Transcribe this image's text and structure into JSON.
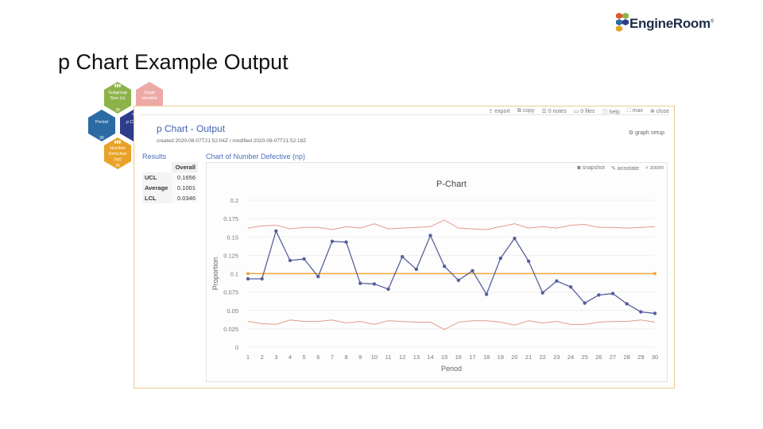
{
  "slide_title": "p Chart Example Output",
  "logo": {
    "text": "EngineRoom",
    "mark": "®"
  },
  "hexes": {
    "subgroup": {
      "line1": "Subgroup",
      "line2": "Size (n)",
      "count": "30"
    },
    "stage": {
      "line1": "Stage",
      "line2": "Variable"
    },
    "period": {
      "label": "Period",
      "count": "30"
    },
    "pchart": {
      "label": "p Chart"
    },
    "defective": {
      "line1": "Number",
      "line2": "Defective",
      "line3": "(np)",
      "count": "30"
    },
    "colors": {
      "green": "#8db24a",
      "pink": "#eda9a6",
      "blue": "#2b6aa3",
      "navy": "#2d3d8c",
      "orange": "#e9a227"
    }
  },
  "toolbar": {
    "export": "export",
    "copy": "copy",
    "notes": "0 notes",
    "files": "0 files",
    "help": "help",
    "max": "max",
    "close": "close"
  },
  "panel": {
    "title": "p Chart - Output",
    "meta": "created 2020-08-07T21:52:04Z / modified 2020-08-07T21:52:18Z",
    "graph_setup": "graph setup"
  },
  "results": {
    "title": "Results",
    "column": "Overall",
    "rows": [
      {
        "label": "UCL",
        "value": "0.1656"
      },
      {
        "label": "Average",
        "value": "0.1001"
      },
      {
        "label": "LCL",
        "value": "0.0346"
      }
    ]
  },
  "chart_header": "Chart of Number Defective (np)",
  "chart_toolbar": {
    "snapshot": "snapshot",
    "annotate": "annotate",
    "zoom": "zoom"
  },
  "chart_data": {
    "type": "line",
    "title": "P-Chart",
    "xlabel": "Period",
    "ylabel": "Proportion",
    "ylim": [
      0,
      0.2
    ],
    "yticks": [
      0,
      0.025,
      0.05,
      0.075,
      0.1,
      0.125,
      0.15,
      0.175,
      0.2
    ],
    "ytick_labels": [
      "0",
      "0.025",
      "0.05",
      "0.075",
      "0.1",
      "0.125",
      "0.15",
      "0.175",
      "0.2"
    ],
    "x": [
      1,
      2,
      3,
      4,
      5,
      6,
      7,
      8,
      9,
      10,
      11,
      12,
      13,
      14,
      15,
      16,
      17,
      18,
      19,
      20,
      21,
      22,
      23,
      24,
      25,
      26,
      27,
      28,
      29,
      30
    ],
    "series": [
      {
        "values": [
          0.093,
          0.093,
          0.158,
          0.118,
          0.12,
          0.096,
          0.144,
          0.143,
          0.087,
          0.086,
          0.079,
          0.123,
          0.106,
          0.152,
          0.11,
          0.091,
          0.104,
          0.072,
          0.121,
          0.148,
          0.117,
          0.074,
          0.09,
          0.082,
          0.06,
          0.071,
          0.073,
          0.059,
          0.048,
          0.046
        ]
      },
      {
        "values": [
          0.162,
          0.165,
          0.166,
          0.161,
          0.163,
          0.163,
          0.16,
          0.164,
          0.162,
          0.168,
          0.161,
          0.162,
          0.163,
          0.164,
          0.173,
          0.162,
          0.161,
          0.16,
          0.164,
          0.168,
          0.162,
          0.164,
          0.162,
          0.166,
          0.167,
          0.163,
          0.163,
          0.162,
          0.163,
          0.164
        ]
      },
      {
        "values": [
          0.1001,
          0.1001,
          0.1001,
          0.1001,
          0.1001,
          0.1001,
          0.1001,
          0.1001,
          0.1001,
          0.1001,
          0.1001,
          0.1001,
          0.1001,
          0.1001,
          0.1001,
          0.1001,
          0.1001,
          0.1001,
          0.1001,
          0.1001,
          0.1001,
          0.1001,
          0.1001,
          0.1001,
          0.1001,
          0.1001,
          0.1001,
          0.1001,
          0.1001,
          0.1001
        ]
      },
      {
        "values": [
          0.035,
          0.032,
          0.031,
          0.037,
          0.035,
          0.035,
          0.037,
          0.033,
          0.035,
          0.031,
          0.036,
          0.035,
          0.034,
          0.034,
          0.024,
          0.034,
          0.036,
          0.036,
          0.034,
          0.03,
          0.036,
          0.033,
          0.035,
          0.031,
          0.031,
          0.034,
          0.035,
          0.035,
          0.037,
          0.034
        ]
      }
    ],
    "colors": {
      "data": "#56609e",
      "limits": "#e29b8a",
      "center": "#f1a33b"
    },
    "grid": true,
    "legend": "none"
  }
}
